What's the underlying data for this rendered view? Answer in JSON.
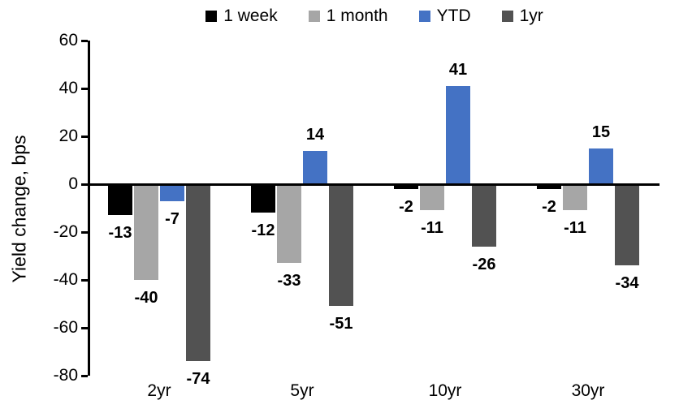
{
  "chart_data": {
    "type": "bar",
    "title": "",
    "xlabel": "",
    "ylabel": "Yield change, bps",
    "categories": [
      "2yr",
      "5yr",
      "10yr",
      "30yr"
    ],
    "series": [
      {
        "name": "1 week",
        "color": "#000000",
        "values": [
          -13,
          -12,
          -2,
          -2
        ]
      },
      {
        "name": "1 month",
        "color": "#A6A6A6",
        "values": [
          -40,
          -33,
          -11,
          -11
        ]
      },
      {
        "name": "YTD",
        "color": "#4472C4",
        "values": [
          -7,
          14,
          41,
          15
        ]
      },
      {
        "name": "1yr",
        "color": "#525252",
        "values": [
          -74,
          -51,
          -26,
          -34
        ]
      }
    ],
    "ylim": [
      -80,
      60
    ],
    "yticks": [
      60,
      40,
      20,
      0,
      -20,
      -40,
      -60,
      -80
    ],
    "grid": false,
    "legend_position": "top",
    "data_labels": true
  }
}
